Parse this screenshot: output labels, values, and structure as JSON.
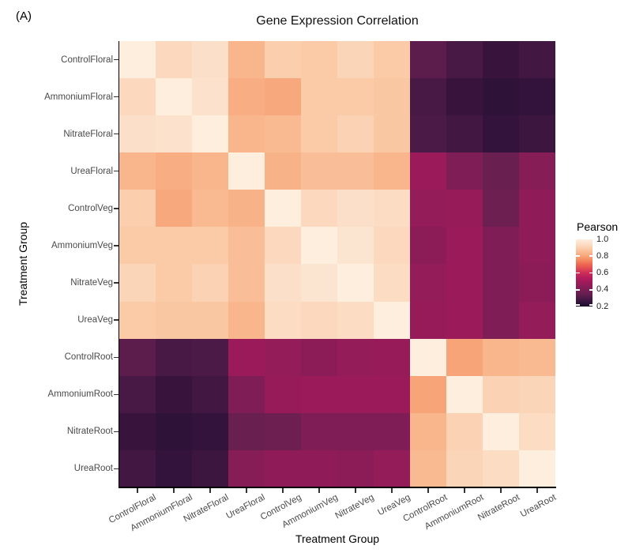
{
  "panel_label": "(A)",
  "chart": {
    "title": "Gene Expression Correlation",
    "x_axis_title": "Treatment Group",
    "y_axis_title": "Treatment Group"
  },
  "legend": {
    "title": "Pearson",
    "tick_labels": [
      "1.0",
      "0.8",
      "0.6",
      "0.4",
      "0.2"
    ]
  },
  "chart_data": {
    "type": "heatmap",
    "title": "Gene Expression Correlation",
    "xlabel": "Treatment Group",
    "ylabel": "Treatment Group",
    "legend_title": "Pearson",
    "categories": [
      "ControlFloral",
      "AmmoniumFloral",
      "NitrateFloral",
      "UreaFloral",
      "ControlVeg",
      "AmmoniumVeg",
      "NitrateVeg",
      "UreaVeg",
      "ControlRoot",
      "AmmoniumRoot",
      "NitrateRoot",
      "UreaRoot"
    ],
    "value_name": "Pearson correlation",
    "value_range": [
      0.2,
      1.0
    ],
    "legend_ticks": [
      1.0,
      0.8,
      0.6,
      0.4,
      0.2
    ],
    "x_tick_rotation_deg": 28,
    "matrix": [
      [
        1.0,
        0.93,
        0.95,
        0.84,
        0.9,
        0.89,
        0.92,
        0.89,
        0.33,
        0.29,
        0.26,
        0.28
      ],
      [
        0.93,
        1.0,
        0.96,
        0.82,
        0.81,
        0.89,
        0.89,
        0.88,
        0.29,
        0.26,
        0.24,
        0.25
      ],
      [
        0.95,
        0.96,
        1.0,
        0.84,
        0.85,
        0.89,
        0.91,
        0.88,
        0.3,
        0.28,
        0.25,
        0.27
      ],
      [
        0.84,
        0.82,
        0.84,
        1.0,
        0.83,
        0.86,
        0.86,
        0.84,
        0.48,
        0.41,
        0.36,
        0.43
      ],
      [
        0.9,
        0.81,
        0.85,
        0.83,
        1.0,
        0.93,
        0.95,
        0.94,
        0.46,
        0.47,
        0.37,
        0.45
      ],
      [
        0.89,
        0.89,
        0.89,
        0.86,
        0.93,
        1.0,
        0.97,
        0.93,
        0.44,
        0.48,
        0.41,
        0.45
      ],
      [
        0.92,
        0.89,
        0.91,
        0.86,
        0.95,
        0.97,
        1.0,
        0.94,
        0.46,
        0.48,
        0.41,
        0.44
      ],
      [
        0.89,
        0.88,
        0.88,
        0.84,
        0.94,
        0.93,
        0.94,
        1.0,
        0.47,
        0.48,
        0.41,
        0.46
      ],
      [
        0.33,
        0.29,
        0.3,
        0.48,
        0.46,
        0.44,
        0.46,
        0.47,
        1.0,
        0.8,
        0.84,
        0.85
      ],
      [
        0.29,
        0.26,
        0.28,
        0.41,
        0.47,
        0.48,
        0.48,
        0.48,
        0.8,
        1.0,
        0.91,
        0.92
      ],
      [
        0.26,
        0.24,
        0.25,
        0.36,
        0.37,
        0.41,
        0.41,
        0.41,
        0.84,
        0.91,
        1.0,
        0.94
      ],
      [
        0.28,
        0.25,
        0.27,
        0.43,
        0.45,
        0.45,
        0.44,
        0.46,
        0.85,
        0.92,
        0.94,
        1.0
      ]
    ],
    "colorscale_stops": [
      [
        1.0,
        "#fdeedd"
      ],
      [
        0.95,
        "#fcdfc8"
      ],
      [
        0.9,
        "#fbcfae"
      ],
      [
        0.85,
        "#f9ba92"
      ],
      [
        0.8,
        "#f7a578"
      ],
      [
        0.75,
        "#f48862"
      ],
      [
        0.7,
        "#ee6551"
      ],
      [
        0.65,
        "#e04b52"
      ],
      [
        0.6,
        "#cd2d58"
      ],
      [
        0.55,
        "#b81f5c"
      ],
      [
        0.5,
        "#a31a5b"
      ],
      [
        0.45,
        "#8f1c58"
      ],
      [
        0.4,
        "#7b1e55"
      ],
      [
        0.35,
        "#661f50"
      ],
      [
        0.3,
        "#4c1a46"
      ],
      [
        0.25,
        "#33133b"
      ],
      [
        0.2,
        "#190d28"
      ]
    ]
  }
}
